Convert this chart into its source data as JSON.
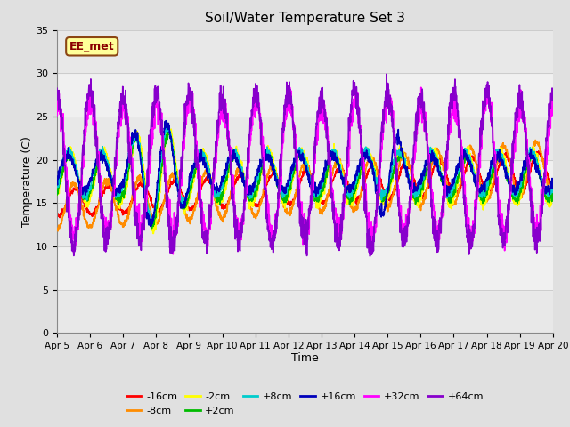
{
  "title": "Soil/Water Temperature Set 3",
  "xlabel": "Time",
  "ylabel": "Temperature (C)",
  "ylim": [
    0,
    35
  ],
  "yticks": [
    0,
    5,
    10,
    15,
    20,
    25,
    30,
    35
  ],
  "x_tick_labels": [
    "Apr 5",
    "Apr 6",
    "Apr 7",
    "Apr 8",
    "Apr 9",
    "Apr 10",
    "Apr 11",
    "Apr 12",
    "Apr 13",
    "Apr 14",
    "Apr 15",
    "Apr 16",
    "Apr 17",
    "Apr 18",
    "Apr 19",
    "Apr 20"
  ],
  "annotation_text": "EE_met",
  "series": [
    {
      "label": "-16cm",
      "color": "#FF0000",
      "lw": 1.2
    },
    {
      "label": "-8cm",
      "color": "#FF8C00",
      "lw": 1.2
    },
    {
      "label": "-2cm",
      "color": "#FFFF00",
      "lw": 1.2
    },
    {
      "label": "+2cm",
      "color": "#00BB00",
      "lw": 1.2
    },
    {
      "label": "+8cm",
      "color": "#00CCCC",
      "lw": 1.2
    },
    {
      "label": "+16cm",
      "color": "#0000BB",
      "lw": 1.2
    },
    {
      "label": "+32cm",
      "color": "#FF00FF",
      "lw": 1.2
    },
    {
      "label": "+64cm",
      "color": "#8800CC",
      "lw": 1.2
    }
  ],
  "band_colors": [
    "#EBEBEB",
    "#F5F5F5"
  ],
  "bg_color": "#E0E0E0",
  "plot_bg_color": "#F5F5F5",
  "figsize": [
    6.4,
    4.8
  ],
  "dpi": 100
}
